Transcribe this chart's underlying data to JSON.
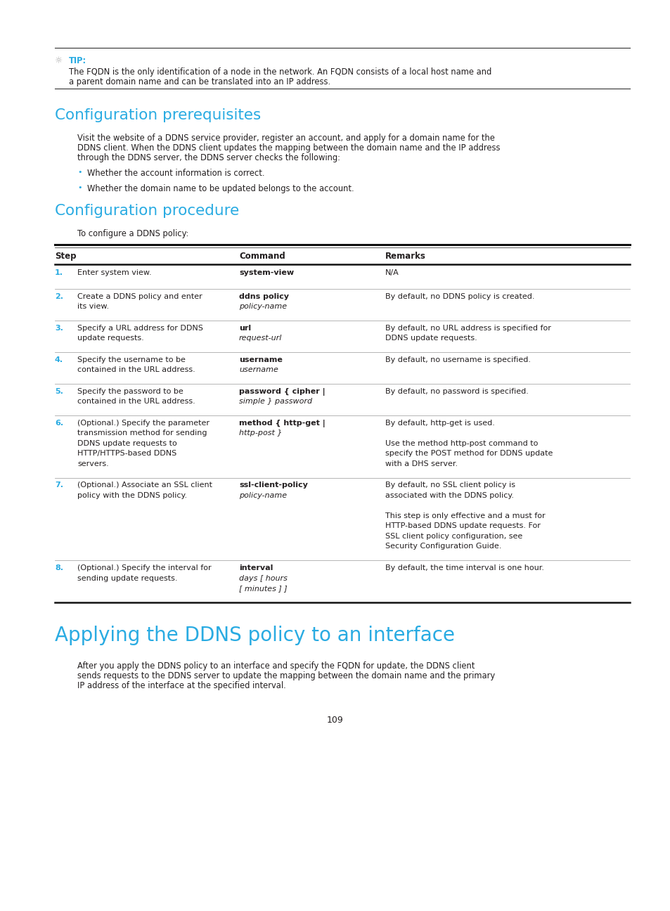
{
  "bg_color": "#ffffff",
  "cyan_color": "#29abe2",
  "black_color": "#231f20",
  "gray_color": "#555555",
  "tip_label": "TIP:",
  "tip_text1": "The FQDN is the only identification of a node in the network. An FQDN consists of a local host name and",
  "tip_text2": "a parent domain name and can be translated into an IP address.",
  "section1_title": "Configuration prerequisites",
  "section1_body1": "Visit the website of a DDNS service provider, register an account, and apply for a domain name for the",
  "section1_body2": "DDNS client. When the DDNS client updates the mapping between the domain name and the IP address",
  "section1_body3": "through the DDNS server, the DDNS server checks the following:",
  "bullet1": "Whether the account information is correct.",
  "bullet2": "Whether the domain name to be updated belongs to the account.",
  "section2_title": "Configuration procedure",
  "proc_intro": "To configure a DDNS policy:",
  "table_headers": [
    "Step",
    "Command",
    "Remarks"
  ],
  "section3_title": "Applying the DDNS policy to an interface",
  "section3_body1": "After you apply the DDNS policy to an interface and specify the FQDN for update, the DDNS client",
  "section3_body2": "sends requests to the DDNS server to update the mapping between the domain name and the primary",
  "section3_body3": "IP address of the interface at the specified interval.",
  "page_num": "109",
  "table_rows": [
    {
      "num": "1.",
      "step_lines": [
        "Enter system view."
      ],
      "cmd_bold": "system-view",
      "cmd_italic": "",
      "remark_lines": [
        "N/A"
      ]
    },
    {
      "num": "2.",
      "step_lines": [
        "Create a DDNS policy and enter",
        "its view."
      ],
      "cmd_bold": "ddns policy",
      "cmd_italic": "policy-name",
      "remark_lines": [
        "By default, no DDNS policy is created."
      ]
    },
    {
      "num": "3.",
      "step_lines": [
        "Specify a URL address for DDNS",
        "update requests."
      ],
      "cmd_bold": "url",
      "cmd_italic": "request-url",
      "remark_lines": [
        "By default, no URL address is specified for",
        "DDNS update requests."
      ]
    },
    {
      "num": "4.",
      "step_lines": [
        "Specify the username to be",
        "contained in the URL address."
      ],
      "cmd_bold": "username",
      "cmd_italic": "username",
      "remark_lines": [
        "By default, no username is specified."
      ]
    },
    {
      "num": "5.",
      "step_lines": [
        "Specify the password to be",
        "contained in the URL address."
      ],
      "cmd_bold": "password { cipher |",
      "cmd_italic": "simple } password",
      "remark_lines": [
        "By default, no password is specified."
      ]
    },
    {
      "num": "6.",
      "step_lines": [
        "(Optional.) Specify the parameter",
        "transmission method for sending",
        "DDNS update requests to",
        "HTTP/HTTPS-based DDNS",
        "servers."
      ],
      "cmd_bold": "method { http-get |",
      "cmd_italic": "http-post }",
      "remark_lines": [
        "By default, http-get is used.",
        "",
        "Use the method http-post command to",
        "specify the POST method for DDNS update",
        "with a DHS server."
      ]
    },
    {
      "num": "7.",
      "step_lines": [
        "(Optional.) Associate an SSL client",
        "policy with the DDNS policy."
      ],
      "cmd_bold": "ssl-client-policy",
      "cmd_italic": "policy-name",
      "remark_lines": [
        "By default, no SSL client policy is",
        "associated with the DDNS policy.",
        "",
        "This step is only effective and a must for",
        "HTTP-based DDNS update requests. For",
        "SSL client policy configuration, see",
        "Security Configuration Guide."
      ]
    },
    {
      "num": "8.",
      "step_lines": [
        "(Optional.) Specify the interval for",
        "sending update requests."
      ],
      "cmd_bold": "interval",
      "cmd_italic": "days [ hours",
      "cmd_italic2": "[ minutes ] ]",
      "remark_lines": [
        "By default, the time interval is one hour."
      ]
    }
  ]
}
